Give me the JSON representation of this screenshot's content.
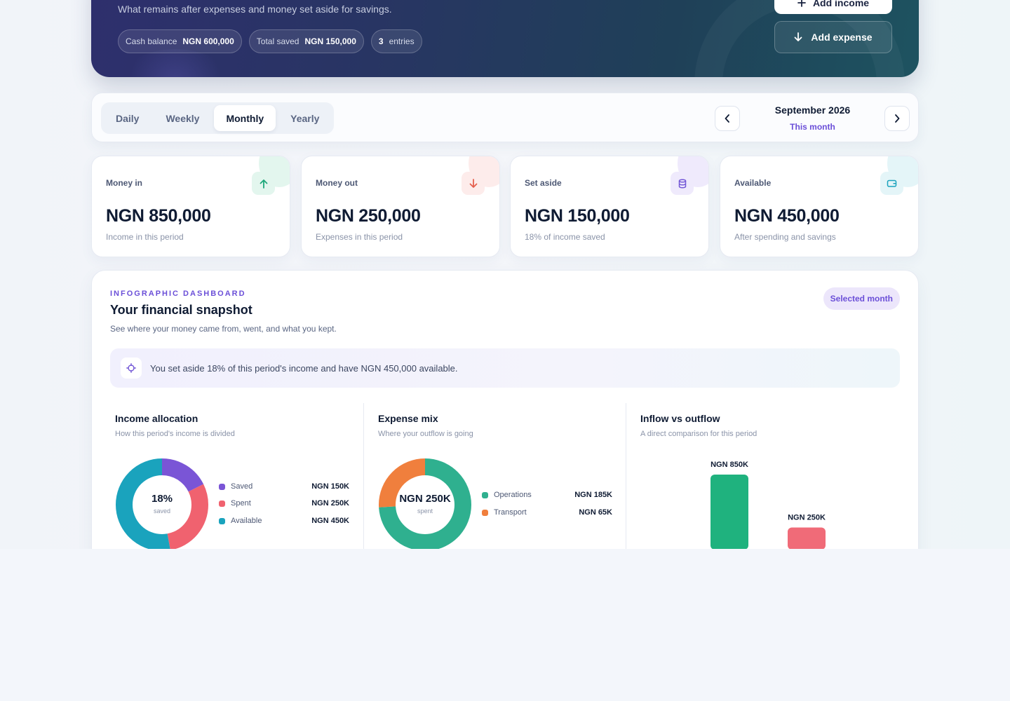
{
  "hero": {
    "subtitle": "What remains after expenses and money set aside for savings.",
    "pills": [
      {
        "label": "Cash balance",
        "value": "NGN 600,000"
      },
      {
        "label": "Total saved",
        "value": "NGN 150,000"
      },
      {
        "value": "3",
        "label": "entries"
      }
    ],
    "add_income_label": "Add income",
    "add_expense_label": "Add expense"
  },
  "period": {
    "tabs": [
      "Daily",
      "Weekly",
      "Monthly",
      "Yearly"
    ],
    "active_tab": "Monthly",
    "month": "September 2026",
    "relative": "This month"
  },
  "stats": [
    {
      "label": "Money in",
      "value": "NGN 850,000",
      "sub": "Income in this period",
      "icon": "arrow-up-icon",
      "color": "#1fa87a",
      "tint": "#e3f6ee"
    },
    {
      "label": "Money out",
      "value": "NGN 250,000",
      "sub": "Expenses in this period",
      "icon": "arrow-down-icon",
      "color": "#e5604f",
      "tint": "#fdeceb"
    },
    {
      "label": "Set aside",
      "value": "NGN 150,000",
      "sub": "18% of income saved",
      "icon": "database-icon",
      "color": "#7357d6",
      "tint": "#efeafc"
    },
    {
      "label": "Available",
      "value": "NGN 450,000",
      "sub": "After spending and savings",
      "icon": "wallet-icon",
      "color": "#1aa3bd",
      "tint": "#e4f5f8"
    }
  ],
  "dashboard": {
    "eyebrow": "INFOGRAPHIC DASHBOARD",
    "title": "Your financial snapshot",
    "subtitle": "See where your money came from, went, and what you kept.",
    "badge": "Selected month",
    "insight": "You set aside 18% of this period's income and have NGN 450,000 available."
  },
  "chart_data": [
    {
      "type": "pie",
      "title": "Income allocation",
      "subtitle": "How this period's income is divided",
      "center_value": "18%",
      "center_label": "saved",
      "labels": [
        "Saved",
        "Spent",
        "Available"
      ],
      "value_labels": [
        "NGN 150K",
        "NGN 250K",
        "NGN 450K"
      ],
      "values": [
        150000,
        250000,
        450000
      ],
      "colors": [
        "#7a55d6",
        "#f0626f",
        "#1aa3bd"
      ]
    },
    {
      "type": "pie",
      "title": "Expense mix",
      "subtitle": "Where your outflow is going",
      "center_value": "NGN 250K",
      "center_label": "spent",
      "labels": [
        "Operations",
        "Transport"
      ],
      "value_labels": [
        "NGN 185K",
        "NGN 65K"
      ],
      "values": [
        185000,
        65000
      ],
      "colors": [
        "#2fb08f",
        "#f07f3d"
      ]
    },
    {
      "type": "bar",
      "title": "Inflow vs outflow",
      "subtitle": "A direct comparison for this period",
      "value_labels": [
        "NGN 850K",
        "NGN 250K"
      ],
      "values": [
        850000,
        250000
      ],
      "colors": [
        "#1fb27e",
        "#f06b78"
      ]
    }
  ]
}
